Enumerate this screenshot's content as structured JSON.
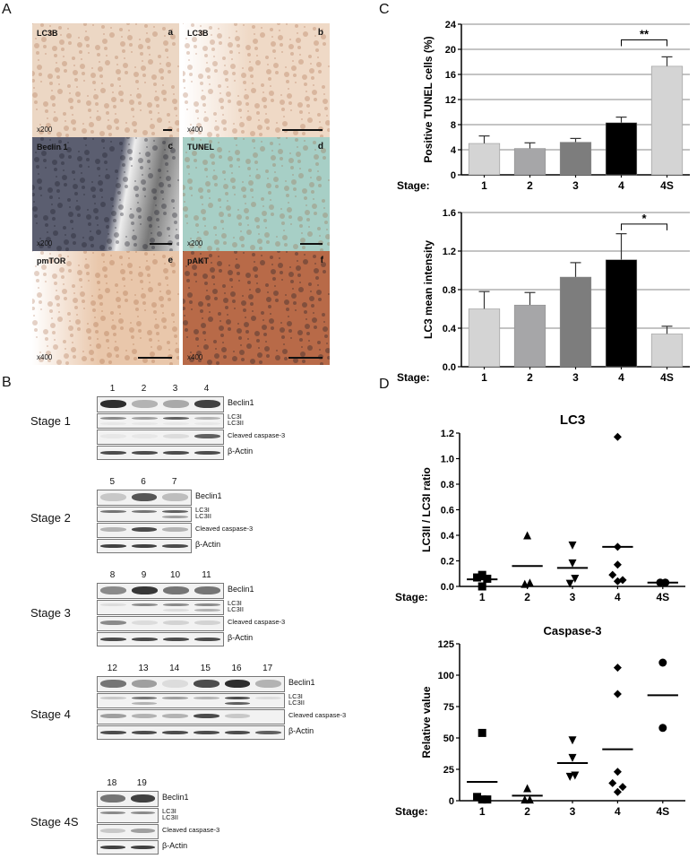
{
  "panels": {
    "A": {
      "letter": "A"
    },
    "B": {
      "letter": "B"
    },
    "C": {
      "letter": "C"
    },
    "D": {
      "letter": "D"
    }
  },
  "histology": [
    {
      "stain": "LC3B",
      "sub": "a",
      "mag": "x200",
      "tint": "#ecd7c4"
    },
    {
      "stain": "LC3B",
      "sub": "b",
      "mag": "x400",
      "tint": "#efd9c6"
    },
    {
      "stain": "Beclin 1",
      "sub": "c",
      "mag": "x200",
      "tint": "#5a5d6e"
    },
    {
      "stain": "TUNEL",
      "sub": "d",
      "mag": "x200",
      "tint": "#a7cfc6"
    },
    {
      "stain": "pmTOR",
      "sub": "e",
      "mag": "x400",
      "tint": "#e9c7ab"
    },
    {
      "stain": "pAKT",
      "sub": "f",
      "mag": "x400",
      "tint": "#b86a48"
    }
  ],
  "western_blots": {
    "band_labels": {
      "beclin": "Beclin1",
      "lc3i": "LC3I",
      "lc3ii": "LC3II",
      "caspase": "Cleaved caspase-3",
      "actin": "β-Actin"
    },
    "stages": [
      {
        "label": "Stage 1",
        "lanes": [
          "1",
          "2",
          "3",
          "4"
        ]
      },
      {
        "label": "Stage 2",
        "lanes": [
          "5",
          "6",
          "7"
        ]
      },
      {
        "label": "Stage 3",
        "lanes": [
          "8",
          "9",
          "10",
          "11"
        ]
      },
      {
        "label": "Stage 4",
        "lanes": [
          "12",
          "13",
          "14",
          "15",
          "16",
          "17"
        ]
      },
      {
        "label": "Stage 4S",
        "lanes": [
          "18",
          "19"
        ]
      }
    ]
  },
  "chart_data": [
    {
      "type": "bar",
      "panel": "C",
      "title": "",
      "xlabel": "Stage:",
      "ylabel": "Positive TUNEL cells (%)",
      "categories": [
        "1",
        "2",
        "3",
        "4",
        "4S"
      ],
      "values": [
        5.0,
        4.2,
        5.2,
        8.3,
        17.3
      ],
      "errors": [
        1.2,
        0.9,
        0.6,
        0.9,
        1.5
      ],
      "colors": [
        "#d4d4d4",
        "#a6a6a8",
        "#7d7d7d",
        "#000000",
        "#d4d4d4"
      ],
      "yticks": [
        "0",
        "4",
        "8",
        "12",
        "16",
        "20",
        "24"
      ],
      "ylim": [
        0,
        24
      ],
      "grid": true,
      "significance": {
        "between": [
          "4",
          "4S"
        ],
        "label": "**"
      }
    },
    {
      "type": "bar",
      "panel": "C",
      "title": "",
      "xlabel": "Stage:",
      "ylabel": "LC3 mean intensity",
      "categories": [
        "1",
        "2",
        "3",
        "4",
        "4S"
      ],
      "values": [
        0.6,
        0.64,
        0.93,
        1.11,
        0.34
      ],
      "errors": [
        0.18,
        0.13,
        0.15,
        0.27,
        0.08
      ],
      "colors": [
        "#d4d4d4",
        "#a6a6a8",
        "#7d7d7d",
        "#000000",
        "#d4d4d4"
      ],
      "yticks": [
        "0.0",
        "0.4",
        "0.8",
        "1.2",
        "1.6"
      ],
      "ylim": [
        0,
        1.6
      ],
      "grid": true,
      "significance": {
        "between": [
          "4",
          "4S"
        ],
        "label": "*"
      }
    },
    {
      "type": "scatter",
      "panel": "D",
      "title": "LC3",
      "xlabel": "Stage:",
      "ylabel": "LC3II / LC3I ratio",
      "categories": [
        "1",
        "2",
        "3",
        "4",
        "4S"
      ],
      "markers": [
        "square",
        "triangle-up",
        "triangle-down",
        "diamond",
        "circle"
      ],
      "series": [
        {
          "name": "1",
          "points": [
            0.07,
            0.09,
            0.06,
            0.0
          ],
          "offsets": [
            -0.4,
            0,
            0.4,
            0
          ],
          "mean": 0.055
        },
        {
          "name": "2",
          "points": [
            0.4,
            0.02,
            0.03
          ],
          "offsets": [
            0,
            -0.2,
            0.2
          ],
          "mean": 0.16
        },
        {
          "name": "3",
          "points": [
            0.32,
            0.18,
            0.06,
            0.02
          ],
          "offsets": [
            0,
            0,
            0.2,
            -0.2
          ],
          "mean": 0.145
        },
        {
          "name": "4",
          "points": [
            1.17,
            0.31,
            0.17,
            0.09,
            0.05,
            0.04
          ],
          "offsets": [
            0,
            0,
            0,
            -0.4,
            0.4,
            0
          ],
          "mean": 0.31
        },
        {
          "name": "4S",
          "points": [
            0.03,
            0.03
          ],
          "offsets": [
            -0.2,
            0.2
          ],
          "mean": 0.03
        }
      ],
      "yticks": [
        "0.0",
        "0.2",
        "0.4",
        "0.6",
        "0.8",
        "1.0",
        "1.2"
      ],
      "ylim": [
        0,
        1.2
      ],
      "grid": false
    },
    {
      "type": "scatter",
      "panel": "D",
      "title": "Caspase-3",
      "xlabel": "Stage:",
      "ylabel": "Relative value",
      "categories": [
        "1",
        "2",
        "3",
        "4",
        "4S"
      ],
      "markers": [
        "square",
        "triangle-up",
        "triangle-down",
        "diamond",
        "circle"
      ],
      "series": [
        {
          "name": "1",
          "points": [
            54,
            3,
            1,
            1
          ],
          "offsets": [
            0,
            -0.4,
            0,
            0.4
          ],
          "mean": 15
        },
        {
          "name": "2",
          "points": [
            10,
            1,
            1
          ],
          "offsets": [
            0,
            -0.2,
            0.2
          ],
          "mean": 4
        },
        {
          "name": "3",
          "points": [
            48,
            34,
            20,
            19
          ],
          "offsets": [
            0,
            0,
            0.2,
            -0.2
          ],
          "mean": 30
        },
        {
          "name": "4",
          "points": [
            106,
            85,
            23,
            14,
            11,
            7
          ],
          "offsets": [
            0,
            0,
            0,
            -0.4,
            0.4,
            0
          ],
          "mean": 41
        },
        {
          "name": "4S",
          "points": [
            110,
            58
          ],
          "offsets": [
            0,
            0
          ],
          "mean": 84
        }
      ],
      "yticks": [
        "0",
        "25",
        "50",
        "75",
        "100",
        "125"
      ],
      "ylim": [
        0,
        125
      ],
      "grid": false
    }
  ]
}
